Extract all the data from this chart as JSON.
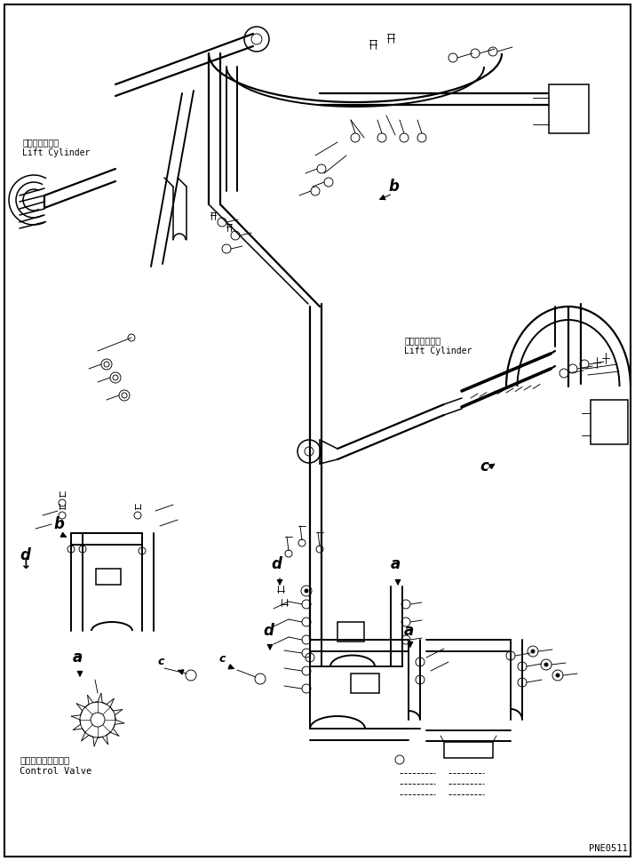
{
  "background_color": "#ffffff",
  "part_number": "PNE0511",
  "fig_width": 7.15,
  "fig_height": 9.69,
  "dpi": 100,
  "border_lw": 1.5,
  "line_color": "#000000",
  "labels": {
    "lift_cyl_left_jp": "リフトシリンダ",
    "lift_cyl_left_en": "Lift Cylinder",
    "lift_cyl_right_jp": "リフトシリンダ",
    "lift_cyl_right_en": "Lift Cylinder",
    "ctrl_valve_jp": "コントロールバルブ",
    "ctrl_valve_en": "Control Valve"
  },
  "lw": 1.1,
  "tlw": 0.65,
  "hlw": 1.6,
  "fs_label": 7,
  "fs_callout": 10,
  "fs_pn": 7.5
}
